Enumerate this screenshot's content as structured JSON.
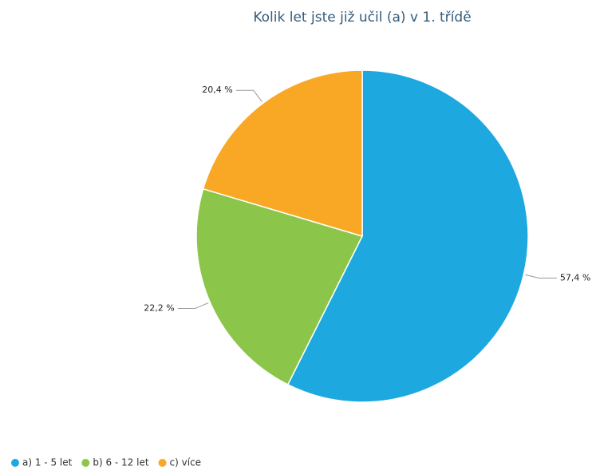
{
  "chart_data": {
    "type": "pie",
    "title": "Kolik let jste již učil (a) v 1. třídě",
    "categories": [
      "a) 1 - 5 let",
      "b) 6 - 12 let",
      "c) více"
    ],
    "values": [
      57.4,
      22.2,
      20.4
    ],
    "value_labels": [
      "57,4 %",
      "22,2 %",
      "20,4 %"
    ],
    "colors": [
      "#1ea8e0",
      "#8bc64a",
      "#f9a825"
    ],
    "legend": "bottom-left"
  }
}
